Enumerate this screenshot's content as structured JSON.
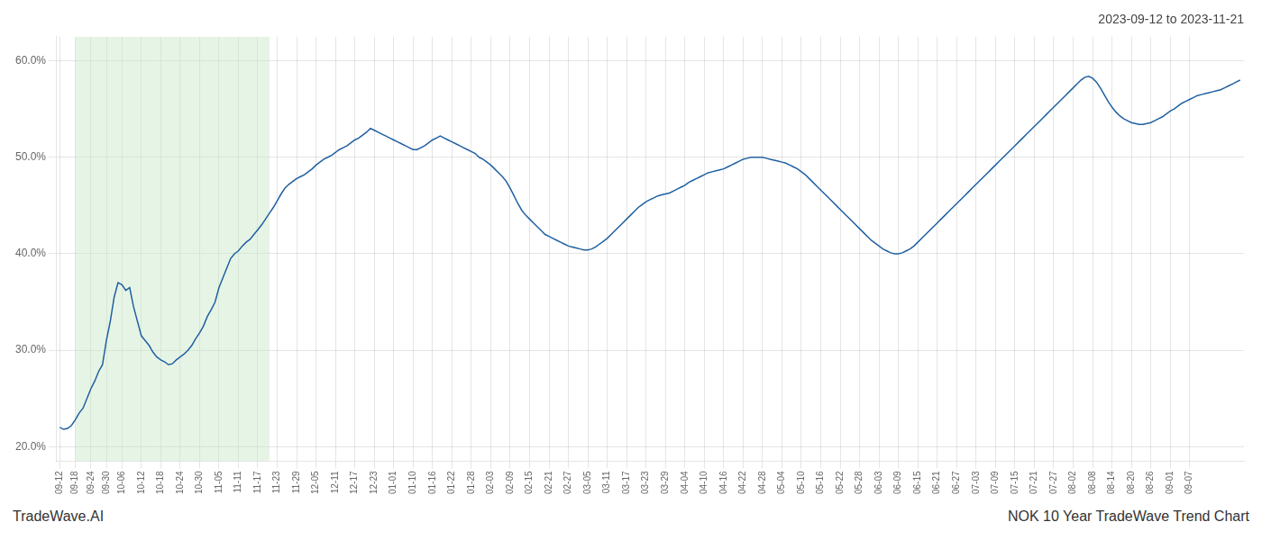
{
  "chart_data": {
    "type": "line",
    "title": "2023-09-12 to 2023-11-21",
    "annotations": [
      "TradeWave.AI",
      "NOK 10 Year TradeWave Trend Chart"
    ],
    "categories": [
      "09-12",
      null,
      null,
      null,
      "09-18",
      null,
      null,
      null,
      "09-24",
      null,
      null,
      null,
      "09-30",
      null,
      null,
      null,
      "10-06",
      null,
      null,
      null,
      null,
      "10-12",
      null,
      null,
      null,
      null,
      "10-18",
      null,
      null,
      null,
      null,
      "10-24",
      null,
      null,
      null,
      null,
      "10-30",
      null,
      null,
      null,
      null,
      "11-05",
      null,
      null,
      null,
      null,
      "11-11",
      null,
      null,
      null,
      null,
      "11-17",
      null,
      null,
      null,
      null,
      "11-23",
      null,
      null,
      null,
      null,
      "11-29",
      null,
      null,
      null,
      null,
      "12-05",
      null,
      null,
      null,
      null,
      "12-11",
      null,
      null,
      null,
      null,
      "12-17",
      null,
      null,
      null,
      null,
      "12-23",
      null,
      null,
      null,
      null,
      "01-01",
      null,
      null,
      null,
      null,
      "01-10",
      null,
      null,
      null,
      null,
      "01-16",
      null,
      null,
      null,
      null,
      "01-22",
      null,
      null,
      null,
      null,
      "01-28",
      null,
      null,
      null,
      null,
      "02-03",
      null,
      null,
      null,
      null,
      "02-09",
      null,
      null,
      null,
      null,
      "02-15",
      null,
      null,
      null,
      null,
      "02-21",
      null,
      null,
      null,
      null,
      "02-27",
      null,
      null,
      null,
      null,
      "03-05",
      null,
      null,
      null,
      null,
      "03-11",
      null,
      null,
      null,
      null,
      "03-17",
      null,
      null,
      null,
      null,
      "03-23",
      null,
      null,
      null,
      null,
      "03-29",
      null,
      null,
      null,
      null,
      "04-04",
      null,
      null,
      null,
      null,
      "04-10",
      null,
      null,
      null,
      null,
      "04-16",
      null,
      null,
      null,
      null,
      "04-22",
      null,
      null,
      null,
      null,
      "04-28",
      null,
      null,
      null,
      null,
      "05-04",
      null,
      null,
      null,
      null,
      "05-10",
      null,
      null,
      null,
      null,
      "05-16",
      null,
      null,
      null,
      null,
      "05-22",
      null,
      null,
      null,
      null,
      "05-28",
      null,
      null,
      null,
      null,
      "06-03",
      null,
      null,
      null,
      null,
      "06-09",
      null,
      null,
      null,
      null,
      "06-15",
      null,
      null,
      null,
      null,
      "06-21",
      null,
      null,
      null,
      null,
      "06-27",
      null,
      null,
      null,
      null,
      "07-03",
      null,
      null,
      null,
      null,
      "07-09",
      null,
      null,
      null,
      null,
      "07-15",
      null,
      null,
      null,
      null,
      "07-21",
      null,
      null,
      null,
      null,
      "07-27",
      null,
      null,
      null,
      null,
      "08-02",
      null,
      null,
      null,
      null,
      "08-08",
      null,
      null,
      null,
      null,
      "08-14",
      null,
      null,
      null,
      null,
      "08-20",
      null,
      null,
      null,
      null,
      "08-26",
      null,
      null,
      null,
      null,
      "09-01",
      null,
      null,
      null,
      null,
      "09-07",
      null,
      null,
      null,
      null,
      null,
      null,
      null,
      null,
      null,
      null,
      null,
      null,
      null
    ],
    "values": [
      0.22,
      0.218,
      0.219,
      0.222,
      0.228,
      0.235,
      0.24,
      0.25,
      0.26,
      0.268,
      0.278,
      0.285,
      0.31,
      0.33,
      0.355,
      0.37,
      0.368,
      0.362,
      0.365,
      0.345,
      0.33,
      0.315,
      0.31,
      0.305,
      0.298,
      0.293,
      0.29,
      0.288,
      0.285,
      0.286,
      0.29,
      0.293,
      0.296,
      0.3,
      0.305,
      0.312,
      0.318,
      0.325,
      0.335,
      0.342,
      0.35,
      0.365,
      0.375,
      0.385,
      0.395,
      0.4,
      0.403,
      0.408,
      0.412,
      0.415,
      0.42,
      0.425,
      0.43,
      0.436,
      0.442,
      0.448,
      0.455,
      0.462,
      0.468,
      0.472,
      0.475,
      0.478,
      0.48,
      0.482,
      0.485,
      0.488,
      0.492,
      0.495,
      0.498,
      0.5,
      0.502,
      0.505,
      0.508,
      0.51,
      0.512,
      0.515,
      0.518,
      0.52,
      0.523,
      0.526,
      0.53,
      0.528,
      0.526,
      0.524,
      0.522,
      0.52,
      0.518,
      0.516,
      0.514,
      0.512,
      0.51,
      0.508,
      0.508,
      0.51,
      0.512,
      0.515,
      0.518,
      0.52,
      0.522,
      0.52,
      0.518,
      0.516,
      0.514,
      0.512,
      0.51,
      0.508,
      0.506,
      0.504,
      0.5,
      0.498,
      0.495,
      0.492,
      0.488,
      0.484,
      0.48,
      0.475,
      0.468,
      0.46,
      0.452,
      0.445,
      0.44,
      0.436,
      0.432,
      0.428,
      0.424,
      0.42,
      0.418,
      0.416,
      0.414,
      0.412,
      0.41,
      0.408,
      0.407,
      0.406,
      0.405,
      0.404,
      0.404,
      0.405,
      0.407,
      0.41,
      0.413,
      0.416,
      0.42,
      0.424,
      0.428,
      0.432,
      0.436,
      0.44,
      0.444,
      0.448,
      0.451,
      0.454,
      0.456,
      0.458,
      0.46,
      0.461,
      0.462,
      0.463,
      0.465,
      0.467,
      0.469,
      0.471,
      0.474,
      0.476,
      0.478,
      0.48,
      0.482,
      0.484,
      0.485,
      0.486,
      0.487,
      0.488,
      0.49,
      0.492,
      0.494,
      0.496,
      0.498,
      0.499,
      0.5,
      0.5,
      0.5,
      0.5,
      0.499,
      0.498,
      0.497,
      0.496,
      0.495,
      0.494,
      0.492,
      0.49,
      0.488,
      0.485,
      0.482,
      0.478,
      0.474,
      0.47,
      0.466,
      0.462,
      0.458,
      0.454,
      0.45,
      0.446,
      0.442,
      0.438,
      0.434,
      0.43,
      0.426,
      0.422,
      0.418,
      0.414,
      0.411,
      0.408,
      0.405,
      0.403,
      0.401,
      0.4,
      0.4,
      0.401,
      0.403,
      0.405,
      0.408,
      0.412,
      0.416,
      0.42,
      0.424,
      0.428,
      0.432,
      0.436,
      0.44,
      0.444,
      0.448,
      0.452,
      0.456,
      0.46,
      0.464,
      0.468,
      0.472,
      0.476,
      0.48,
      0.484,
      0.488,
      0.492,
      0.496,
      0.5,
      0.504,
      0.508,
      0.512,
      0.516,
      0.52,
      0.524,
      0.528,
      0.532,
      0.536,
      0.54,
      0.544,
      0.548,
      0.552,
      0.556,
      0.56,
      0.564,
      0.568,
      0.572,
      0.576,
      0.58,
      0.583,
      0.584,
      0.582,
      0.578,
      0.572,
      0.565,
      0.558,
      0.552,
      0.547,
      0.543,
      0.54,
      0.538,
      0.536,
      0.535,
      0.534,
      0.534,
      0.535,
      0.536,
      0.538,
      0.54,
      0.542,
      0.545,
      0.548,
      0.55,
      0.553,
      0.556,
      0.558,
      0.56,
      0.562,
      0.564,
      0.565,
      0.566,
      0.567,
      0.568,
      0.569,
      0.57,
      0.572,
      0.574,
      0.576,
      0.578,
      0.58
    ],
    "color": "#2060a0",
    "highlight": {
      "from": 4,
      "to": 54,
      "color": "#c8e6c8"
    },
    "ylim": [
      0.185,
      0.625
    ],
    "yticks": [
      {
        "value": 0.2,
        "label": "20.0%"
      },
      {
        "value": 0.3,
        "label": "30.0%"
      },
      {
        "value": 0.4,
        "label": "40.0%"
      },
      {
        "value": 0.5,
        "label": "50.0%"
      },
      {
        "value": 0.6,
        "label": "60.0%"
      }
    ],
    "grid": true
  }
}
